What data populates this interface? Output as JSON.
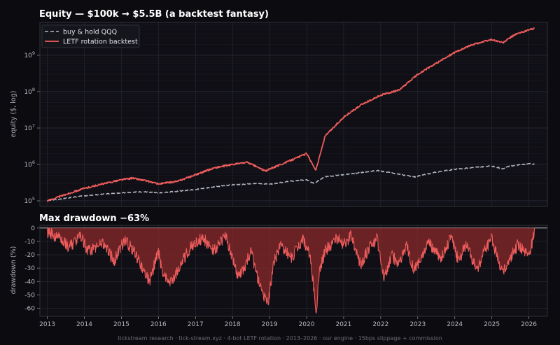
{
  "colors": {
    "background": "#0b0b10",
    "panel": "#0f0f15",
    "strategy": "#ee5c5c",
    "benchmark": "#b4b7c2",
    "drawdown_fill": "#8a2a2a",
    "grid": "#2a2a33",
    "spine": "#3a3a44"
  },
  "footer": "tickstream research · tick-stream.xyz · 4-bot LETF rotation · 2013–2026 · our engine · 15bps slippage + commission",
  "chart_data": [
    {
      "type": "line",
      "title": "Equity — $100k → $5.5B (a backtest fantasy)",
      "ylabel": "equity ($, log)",
      "yscale": "log",
      "ylim": [
        70000,
        8000000000
      ],
      "xlim": [
        2012.8,
        2026.5
      ],
      "yticks": [
        {
          "value": 100000,
          "base": "10",
          "exp": "5"
        },
        {
          "value": 1000000,
          "base": "10",
          "exp": "6"
        },
        {
          "value": 10000000,
          "base": "10",
          "exp": "7"
        },
        {
          "value": 100000000,
          "base": "10",
          "exp": "8"
        },
        {
          "value": 1000000000,
          "base": "10",
          "exp": "9"
        }
      ],
      "grid": true,
      "legend_position": "top-left",
      "series": [
        {
          "name": "buy & hold QQQ",
          "style": "dashed",
          "x": [
            2013.0,
            2013.5,
            2014.0,
            2014.5,
            2015.0,
            2015.6,
            2016.0,
            2016.5,
            2017.0,
            2017.5,
            2018.0,
            2018.7,
            2019.0,
            2019.5,
            2020.0,
            2020.2,
            2020.5,
            2021.0,
            2021.5,
            2021.9,
            2022.5,
            2022.9,
            2023.5,
            2024.0,
            2024.5,
            2025.0,
            2025.3,
            2025.5,
            2026.0,
            2026.15
          ],
          "y": [
            100000,
            118000,
            138000,
            152000,
            165000,
            178000,
            165000,
            182000,
            205000,
            240000,
            275000,
            300000,
            285000,
            340000,
            380000,
            300000,
            460000,
            520000,
            600000,
            680000,
            540000,
            450000,
            620000,
            730000,
            820000,
            900000,
            760000,
            910000,
            1050000,
            1020000
          ]
        },
        {
          "name": "LETF rotation backtest",
          "style": "solid",
          "x": [
            2013.0,
            2013.5,
            2014.0,
            2014.5,
            2015.0,
            2015.3,
            2015.7,
            2016.0,
            2016.5,
            2017.0,
            2017.5,
            2018.0,
            2018.4,
            2018.9,
            2019.0,
            2019.5,
            2020.0,
            2020.25,
            2020.5,
            2021.0,
            2021.5,
            2022.0,
            2022.5,
            2023.0,
            2023.5,
            2024.0,
            2024.5,
            2025.0,
            2025.3,
            2025.6,
            2026.0,
            2026.15
          ],
          "y": [
            100000,
            150000,
            220000,
            290000,
            380000,
            420000,
            350000,
            290000,
            340000,
            520000,
            800000,
            1000000,
            1150000,
            650000,
            750000,
            1200000,
            2000000,
            700000,
            6000000,
            20000000,
            45000000,
            80000000,
            110000000,
            300000000,
            600000000,
            1200000000,
            2000000000,
            2700000000,
            2200000000,
            3600000000,
            5000000000,
            5500000000
          ]
        }
      ]
    },
    {
      "type": "area",
      "title": "Max drawdown −63%",
      "ylabel": "drawdown (%)",
      "ylim": [
        -66,
        2
      ],
      "xlim": [
        2012.8,
        2026.5
      ],
      "yticks": [
        0,
        -10,
        -20,
        -30,
        -40,
        -50,
        -60
      ],
      "xticks": [
        2013,
        2014,
        2015,
        2016,
        2017,
        2018,
        2019,
        2020,
        2021,
        2022,
        2023,
        2024,
        2025,
        2026
      ],
      "grid": true,
      "series": [
        {
          "name": "",
          "x": [
            2013.0,
            2013.3,
            2013.6,
            2013.9,
            2014.1,
            2014.5,
            2014.8,
            2015.1,
            2015.4,
            2015.6,
            2015.75,
            2016.0,
            2016.1,
            2016.3,
            2016.6,
            2016.9,
            2017.2,
            2017.5,
            2017.8,
            2018.0,
            2018.15,
            2018.3,
            2018.5,
            2018.75,
            2018.95,
            2019.1,
            2019.3,
            2019.6,
            2019.9,
            2020.1,
            2020.2,
            2020.25,
            2020.35,
            2020.5,
            2020.8,
            2021.0,
            2021.2,
            2021.45,
            2021.7,
            2021.9,
            2022.1,
            2022.3,
            2022.5,
            2022.7,
            2022.9,
            2023.1,
            2023.3,
            2023.6,
            2023.9,
            2024.1,
            2024.3,
            2024.6,
            2024.8,
            2025.0,
            2025.2,
            2025.35,
            2025.5,
            2025.7,
            2025.9,
            2026.0,
            2026.15
          ],
          "y": [
            0,
            -5,
            -12,
            -3,
            -15,
            -8,
            -22,
            -6,
            -18,
            -30,
            -38,
            -15,
            -30,
            -40,
            -25,
            -10,
            -5,
            -15,
            -3,
            -20,
            -35,
            -28,
            -15,
            -42,
            -55,
            -25,
            -10,
            -20,
            -5,
            -20,
            -45,
            -63,
            -30,
            -15,
            -5,
            -10,
            -3,
            -25,
            -12,
            -5,
            -35,
            -18,
            -25,
            -10,
            -30,
            -20,
            -8,
            -20,
            -5,
            -22,
            -10,
            -30,
            -15,
            -5,
            -25,
            -28,
            -20,
            -10,
            -15,
            -20,
            0
          ]
        }
      ]
    }
  ]
}
